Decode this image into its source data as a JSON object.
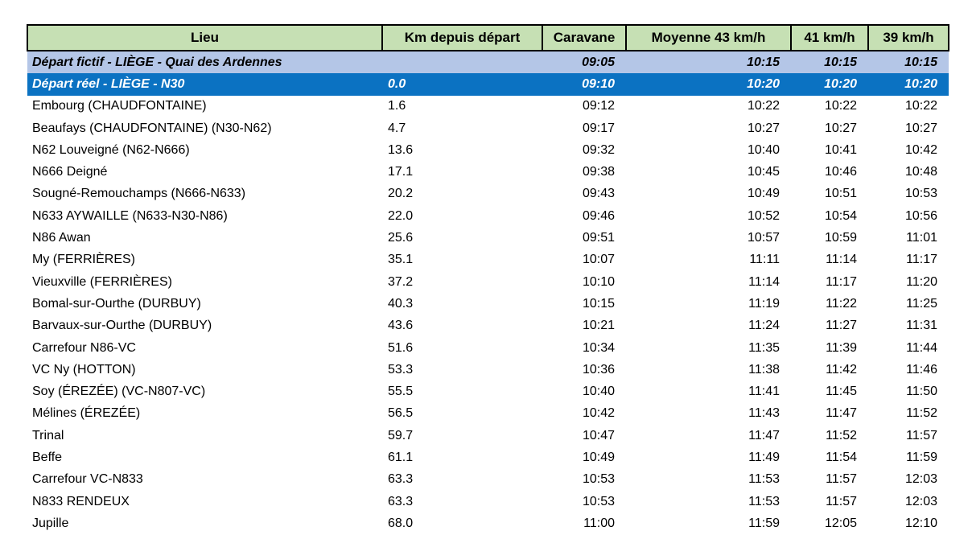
{
  "table": {
    "columns": [
      "Lieu",
      "Km depuis départ",
      "Caravane",
      "Moyenne 43 km/h",
      "41 km/h",
      "39 km/h"
    ],
    "colors": {
      "header_bg": "#C6E0B4",
      "fictif_bg": "#B4C6E7",
      "reel_bg": "#0B72C2",
      "reel_text": "#FFFFFF"
    },
    "rows": [
      {
        "lieu": "Départ fictif - LIÈGE - Quai des Ardennes",
        "km": "",
        "caravane": "09:05",
        "t43": "10:15",
        "t41": "10:15",
        "t39": "10:15",
        "style": "fictif"
      },
      {
        "lieu": "Départ réel - LIÈGE - N30",
        "km": "0.0",
        "caravane": "09:10",
        "t43": "10:20",
        "t41": "10:20",
        "t39": "10:20",
        "style": "reel"
      },
      {
        "lieu": "Embourg (CHAUDFONTAINE)",
        "km": "1.6",
        "caravane": "09:12",
        "t43": "10:22",
        "t41": "10:22",
        "t39": "10:22"
      },
      {
        "lieu": "Beaufays (CHAUDFONTAINE) (N30-N62)",
        "km": "4.7",
        "caravane": "09:17",
        "t43": "10:27",
        "t41": "10:27",
        "t39": "10:27"
      },
      {
        "lieu": "N62 Louveigné (N62-N666)",
        "km": "13.6",
        "caravane": "09:32",
        "t43": "10:40",
        "t41": "10:41",
        "t39": "10:42"
      },
      {
        "lieu": "N666 Deigné",
        "km": "17.1",
        "caravane": "09:38",
        "t43": "10:45",
        "t41": "10:46",
        "t39": "10:48"
      },
      {
        "lieu": "Sougné-Remouchamps (N666-N633)",
        "km": "20.2",
        "caravane": "09:43",
        "t43": "10:49",
        "t41": "10:51",
        "t39": "10:53"
      },
      {
        "lieu": "N633 AYWAILLE (N633-N30-N86)",
        "km": "22.0",
        "caravane": "09:46",
        "t43": "10:52",
        "t41": "10:54",
        "t39": "10:56"
      },
      {
        "lieu": "N86 Awan",
        "km": "25.6",
        "caravane": "09:51",
        "t43": "10:57",
        "t41": "10:59",
        "t39": "11:01"
      },
      {
        "lieu": "My (FERRIÈRES)",
        "km": "35.1",
        "caravane": "10:07",
        "t43": "11:11",
        "t41": "11:14",
        "t39": "11:17"
      },
      {
        "lieu": "Vieuxville (FERRIÈRES)",
        "km": "37.2",
        "caravane": "10:10",
        "t43": "11:14",
        "t41": "11:17",
        "t39": "11:20"
      },
      {
        "lieu": "Bomal-sur-Ourthe (DURBUY)",
        "km": "40.3",
        "caravane": "10:15",
        "t43": "11:19",
        "t41": "11:22",
        "t39": "11:25"
      },
      {
        "lieu": "Barvaux-sur-Ourthe (DURBUY)",
        "km": "43.6",
        "caravane": "10:21",
        "t43": "11:24",
        "t41": "11:27",
        "t39": "11:31"
      },
      {
        "lieu": "Carrefour N86-VC",
        "km": "51.6",
        "caravane": "10:34",
        "t43": "11:35",
        "t41": "11:39",
        "t39": "11:44"
      },
      {
        "lieu": "VC Ny (HOTTON)",
        "km": "53.3",
        "caravane": "10:36",
        "t43": "11:38",
        "t41": "11:42",
        "t39": "11:46"
      },
      {
        "lieu": "Soy (ÉREZÉE) (VC-N807-VC)",
        "km": "55.5",
        "caravane": "10:40",
        "t43": "11:41",
        "t41": "11:45",
        "t39": "11:50"
      },
      {
        "lieu": "Mélines (ÉREZÉE)",
        "km": "56.5",
        "caravane": "10:42",
        "t43": "11:43",
        "t41": "11:47",
        "t39": "11:52"
      },
      {
        "lieu": "Trinal",
        "km": "59.7",
        "caravane": "10:47",
        "t43": "11:47",
        "t41": "11:52",
        "t39": "11:57"
      },
      {
        "lieu": "Beffe",
        "km": "61.1",
        "caravane": "10:49",
        "t43": "11:49",
        "t41": "11:54",
        "t39": "11:59"
      },
      {
        "lieu": "Carrefour VC-N833",
        "km": "63.3",
        "caravane": "10:53",
        "t43": "11:53",
        "t41": "11:57",
        "t39": "12:03"
      },
      {
        "lieu": "N833 RENDEUX",
        "km": "63.3",
        "caravane": "10:53",
        "t43": "11:53",
        "t41": "11:57",
        "t39": "12:03"
      },
      {
        "lieu": "Jupille",
        "km": "68.0",
        "caravane": "11:00",
        "t43": "11:59",
        "t41": "12:05",
        "t39": "12:10"
      }
    ]
  }
}
